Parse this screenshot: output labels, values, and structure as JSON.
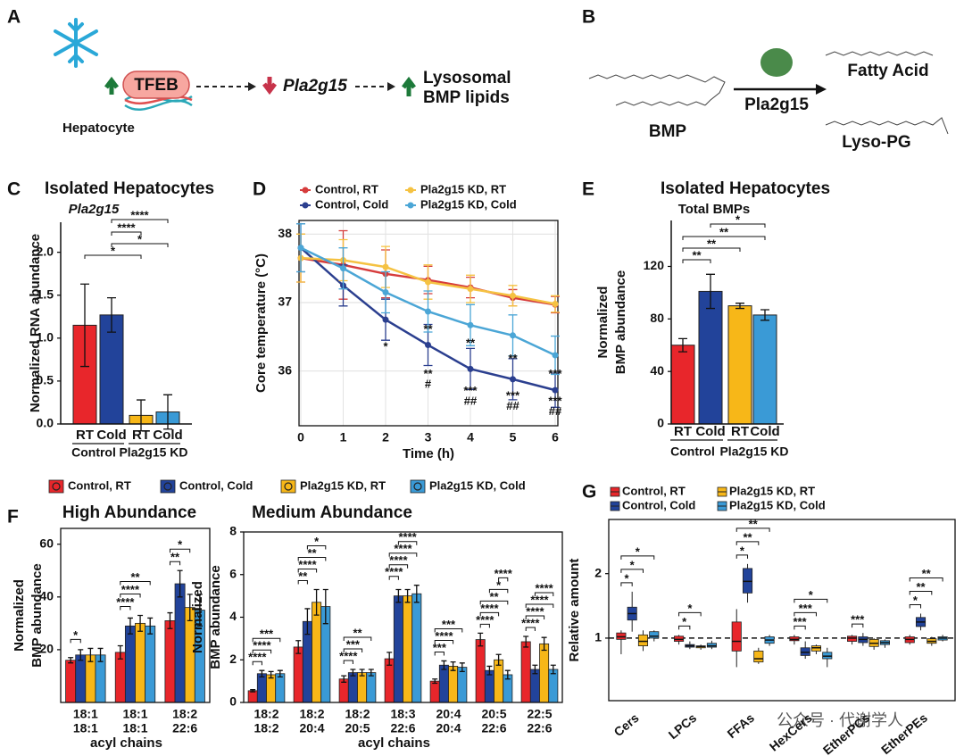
{
  "panel_labels": [
    "A",
    "B",
    "C",
    "D",
    "E",
    "F",
    "G"
  ],
  "diagram": {
    "a": {
      "protein": "TFEB",
      "cell": "Hepatocyte",
      "gene": "Pla2g15",
      "product": [
        "Lysosomal",
        "BMP lipids"
      ]
    },
    "b": {
      "substrate": "BMP",
      "enzyme": "Pla2g15",
      "products": [
        "Fatty Acid",
        "Lyso-PG"
      ]
    }
  },
  "watermark": "公众号 · 代谢学人",
  "chart_data": [
    {
      "type": "bar",
      "title": "Isolated Hepatocytes",
      "subtitle": "Pla2g15",
      "y_label": "Normalized RNA abundance",
      "categories": [
        "RT",
        "Cold",
        "RT",
        "Cold"
      ],
      "groups": [
        "Control",
        "Pla2g15 KD"
      ],
      "values": [
        1.15,
        1.27,
        0.1,
        0.14
      ],
      "errors": [
        0.48,
        0.2,
        0.18,
        0.2
      ],
      "colors": [
        "#e8262b",
        "#22439a",
        "#f7b718",
        "#3a9ad6"
      ],
      "ylim": [
        0,
        2.35
      ],
      "yticks": [
        {
          "value": 0,
          "label": "0.0"
        },
        0.5,
        {
          "value": 1,
          "label": "1.0"
        },
        1.5,
        {
          "value": 2,
          "label": "2.0"
        }
      ],
      "annotations": [
        "****",
        "****",
        "*",
        "*"
      ]
    },
    {
      "type": "line",
      "x_label": "Time (h)",
      "y_label": "Core temperature (°C)",
      "x": [
        0,
        1,
        2,
        3,
        4,
        5,
        6
      ],
      "xlim": [
        0,
        6
      ],
      "xticks": [
        0,
        1,
        2,
        3,
        4,
        5,
        6
      ],
      "ylim": [
        35.2,
        38.2
      ],
      "yticks": [
        36,
        37,
        38
      ],
      "grid": true,
      "series": [
        {
          "name": "Control, RT",
          "color": "#d63c3c",
          "values": [
            37.65,
            37.55,
            37.42,
            37.33,
            37.22,
            37.07,
            36.97
          ],
          "errors": [
            0.35,
            0.5,
            0.35,
            0.2,
            0.15,
            0.12,
            0.12
          ]
        },
        {
          "name": "Control, Cold",
          "color": "#2b3f8f",
          "values": [
            37.8,
            37.25,
            36.75,
            36.38,
            36.03,
            35.88,
            35.72
          ],
          "errors": [
            0.35,
            0.3,
            0.3,
            0.3,
            0.3,
            0.3,
            0.25
          ]
        },
        {
          "name": "Pla2g15 KD, RT",
          "color": "#f5c242",
          "values": [
            37.65,
            37.62,
            37.52,
            37.3,
            37.2,
            37.1,
            36.98
          ],
          "errors": [
            0.35,
            0.3,
            0.3,
            0.25,
            0.2,
            0.15,
            0.12
          ]
        },
        {
          "name": "Pla2g15 KD, Cold",
          "color": "#4ba6d6",
          "values": [
            37.8,
            37.5,
            37.15,
            36.87,
            36.67,
            36.52,
            36.23
          ],
          "errors": [
            0.35,
            0.3,
            0.3,
            0.3,
            0.3,
            0.3,
            0.28
          ]
        }
      ],
      "annotations": [
        "*",
        "**",
        "**",
        "#",
        "**",
        "***",
        "##",
        "**",
        "***",
        "##",
        "***",
        "***",
        "##"
      ]
    },
    {
      "type": "bar",
      "title": "Isolated Hepatocytes",
      "subtitle": "Total BMPs",
      "y_label": [
        "Normalized",
        "BMP abundance"
      ],
      "categories": [
        "RT",
        "Cold",
        "RT",
        "Cold"
      ],
      "groups": [
        "Control",
        "Pla2g15 KD"
      ],
      "values": [
        60,
        101,
        90,
        83
      ],
      "errors": [
        5,
        13,
        2,
        4
      ],
      "colors": [
        "#e8262b",
        "#22439a",
        "#f7b718",
        "#3a9ad6"
      ],
      "ylim": [
        0,
        155
      ],
      "yticks": [
        0,
        40,
        80,
        120
      ],
      "annotations": [
        "*",
        "**",
        "**",
        "**"
      ]
    },
    {
      "type": "grouped_bar",
      "title": "High Abundance",
      "y_label": [
        "Normalized",
        "BMP abundance"
      ],
      "x_label": "acyl chains",
      "categories": [
        [
          "18:1",
          "18:1"
        ],
        [
          "18:1",
          "18:1"
        ],
        [
          "18:2",
          "22:6"
        ]
      ],
      "ylim": [
        0,
        66
      ],
      "yticks": [
        20,
        40,
        60
      ],
      "series": [
        {
          "name": "Control, RT",
          "color": "#e8262b",
          "values": [
            16,
            19,
            31
          ],
          "errors": [
            1,
            2.5,
            3
          ]
        },
        {
          "name": "Control, Cold",
          "color": "#22439a",
          "values": [
            18,
            29,
            45
          ],
          "errors": [
            2,
            3,
            5
          ]
        },
        {
          "name": "Pla2g15 KD, RT",
          "color": "#f7b718",
          "values": [
            18,
            30,
            36
          ],
          "errors": [
            2.5,
            3,
            5
          ]
        },
        {
          "name": "Pla2g15 KD, Cold",
          "color": "#3a9ad6",
          "values": [
            18,
            29,
            35
          ],
          "errors": [
            2.5,
            3,
            6
          ]
        }
      ],
      "annotations": [
        [
          "*"
        ],
        [
          "**",
          "****",
          "****"
        ],
        [
          "*",
          "**"
        ]
      ]
    },
    {
      "type": "grouped_bar",
      "title": "Medium Abundance",
      "y_label": [
        "Normalized",
        "BMP abundance"
      ],
      "x_label": "acyl chains",
      "categories": [
        [
          "18:2",
          "18:2"
        ],
        [
          "18:2",
          "20:4"
        ],
        [
          "18:2",
          "20:5"
        ],
        [
          "18:3",
          "22:6"
        ],
        [
          "20:4",
          "20:4"
        ],
        [
          "20:5",
          "22:6"
        ],
        [
          "22:5",
          "22:6"
        ]
      ],
      "ylim": [
        0,
        8
      ],
      "yticks": [
        0,
        2,
        4,
        6,
        8
      ],
      "series": [
        {
          "color": "#e8262b",
          "values": [
            0.55,
            2.6,
            1.1,
            2.05,
            1.0,
            2.95,
            2.85
          ],
          "errors": [
            0.05,
            0.3,
            0.15,
            0.3,
            0.1,
            0.3,
            0.25
          ]
        },
        {
          "color": "#22439a",
          "values": [
            1.35,
            3.8,
            1.4,
            5.0,
            1.75,
            1.5,
            1.55
          ],
          "errors": [
            0.15,
            0.6,
            0.15,
            0.3,
            0.2,
            0.2,
            0.2
          ]
        },
        {
          "color": "#f7b718",
          "values": [
            1.3,
            4.7,
            1.4,
            5.0,
            1.7,
            2.0,
            2.75
          ],
          "errors": [
            0.15,
            0.6,
            0.15,
            0.3,
            0.2,
            0.25,
            0.3
          ]
        },
        {
          "color": "#3a9ad6",
          "values": [
            1.35,
            4.5,
            1.4,
            5.1,
            1.65,
            1.3,
            1.55
          ],
          "errors": [
            0.15,
            0.8,
            0.15,
            0.4,
            0.2,
            0.2,
            0.2
          ]
        }
      ],
      "annotations": [
        [
          "***",
          "****",
          "****"
        ],
        [
          "*",
          "**",
          "****",
          "**"
        ],
        [
          "**",
          "***",
          "****"
        ],
        [
          "****",
          "****",
          "****",
          "****"
        ],
        [
          "***",
          "****",
          "***"
        ],
        [
          "****",
          "*",
          "**",
          "****",
          "****"
        ],
        [
          "****",
          "****",
          "****",
          "****"
        ]
      ]
    },
    {
      "type": "box",
      "y_label": "Relative amount",
      "categories": [
        "Cers",
        "LPCs",
        "FFAs",
        "HexCers",
        "EtherPCs",
        "EtherPEs"
      ],
      "ylim": [
        0.03,
        2.84
      ],
      "yticks": [
        1,
        2
      ],
      "reference_line": 1,
      "series": [
        {
          "name": "Control, RT",
          "color": "#e8262b",
          "values": [
            [
              0.75,
              0.98,
              1.02,
              1.08,
              1.12
            ],
            [
              0.9,
              0.95,
              0.98,
              1.03,
              1.05
            ],
            [
              0.55,
              0.8,
              0.95,
              1.25,
              1.45
            ],
            [
              0.9,
              0.96,
              0.98,
              1.02,
              1.05
            ],
            [
              0.9,
              0.95,
              1.0,
              1.03,
              1.05
            ],
            [
              0.9,
              0.93,
              0.98,
              1.02,
              1.05
            ]
          ]
        },
        {
          "name": "Control, Cold",
          "color": "#22439a",
          "values": [
            [
              1.1,
              1.28,
              1.38,
              1.48,
              1.72
            ],
            [
              0.83,
              0.86,
              0.88,
              0.9,
              0.95
            ],
            [
              1.55,
              1.7,
              1.88,
              2.08,
              2.15
            ],
            [
              0.68,
              0.73,
              0.78,
              0.85,
              0.95
            ],
            [
              0.88,
              0.93,
              0.98,
              1.02,
              1.08
            ],
            [
              1.12,
              1.18,
              1.25,
              1.32,
              1.38
            ]
          ]
        },
        {
          "name": "Pla2g15 KD, RT",
          "color": "#f7b718",
          "values": [
            [
              0.8,
              0.88,
              0.95,
              1.05,
              1.12
            ],
            [
              0.82,
              0.85,
              0.87,
              0.88,
              0.9
            ],
            [
              0.6,
              0.63,
              0.68,
              0.8,
              0.85
            ],
            [
              0.75,
              0.8,
              0.85,
              0.88,
              0.9
            ],
            [
              0.82,
              0.87,
              0.92,
              0.98,
              1.0
            ],
            [
              0.88,
              0.92,
              0.95,
              0.99,
              1.02
            ]
          ]
        },
        {
          "name": "Pla2g15 KD, Cold",
          "color": "#3a9ad6",
          "values": [
            [
              0.95,
              1.0,
              1.03,
              1.1,
              1.12
            ],
            [
              0.83,
              0.86,
              0.88,
              0.92,
              0.96
            ],
            [
              0.88,
              0.92,
              0.97,
              1.02,
              1.05
            ],
            [
              0.55,
              0.68,
              0.72,
              0.78,
              0.85
            ],
            [
              0.85,
              0.9,
              0.93,
              0.96,
              0.98
            ],
            [
              0.95,
              0.97,
              1.0,
              1.02,
              1.05
            ]
          ]
        }
      ],
      "annotations": [
        [
          "*",
          "*",
          "*"
        ],
        [
          "*",
          "*"
        ],
        [
          "**",
          "**",
          "*"
        ],
        [
          "*",
          "***",
          "***"
        ],
        [
          "***"
        ],
        [
          "**",
          "**",
          "*"
        ]
      ]
    }
  ]
}
